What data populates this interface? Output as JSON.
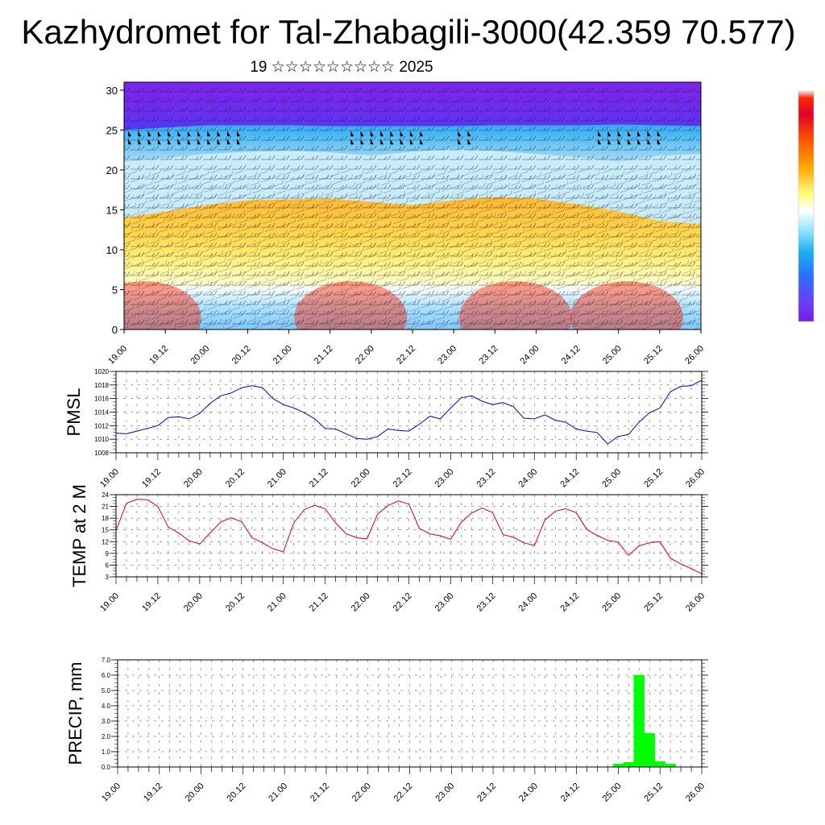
{
  "page": {
    "title": "Kazhydromet for Tal-Zhabagili-3000(42.359 70.577)",
    "subtitle": "19 ☆☆☆☆☆☆☆☆☆ 2025"
  },
  "chart_data": [
    {
      "type": "heatmap",
      "title": "",
      "description_kind": "time-height cross section with wind barbs",
      "x_tick_labels": [
        "19.00",
        "19.12",
        "20.00",
        "20.12",
        "21.00",
        "21.12",
        "22.00",
        "22.12",
        "23.00",
        "23.12",
        "24.00",
        "24.12",
        "25.00",
        "25.12",
        "26.00"
      ],
      "y_ticks": [
        0,
        5,
        10,
        15,
        20,
        25,
        30
      ],
      "ylim": [
        0,
        31
      ],
      "colorbar": {
        "colormap": "rainbow (violet-blue-cyan-white-yellow-orange-red)",
        "tick_labels": []
      },
      "bands": {
        "x": [
          0,
          0.5,
          1,
          1.5,
          2,
          2.5,
          3,
          3.5,
          4,
          4.5,
          5,
          5.5,
          6,
          6.5,
          7
        ],
        "warm_top": [
          14.0,
          14.8,
          15.6,
          16.2,
          16.3,
          16.4,
          16.0,
          15.6,
          16.2,
          16.6,
          16.4,
          15.7,
          14.8,
          13.6,
          13.2
        ],
        "cool_top": [
          21.0,
          21.5,
          22.0,
          22.3,
          22.4,
          22.2,
          21.8,
          22.3,
          22.6,
          22.4,
          22.0,
          21.6,
          21.0,
          21.8,
          22.0
        ],
        "violet_bottom": [
          25.0,
          25.3,
          25.6,
          25.6,
          25.6,
          25.5,
          25.5,
          25.5,
          25.5,
          25.6,
          25.6,
          25.6,
          25.7,
          25.6,
          25.5
        ]
      },
      "grid": false,
      "legend": "colorbar at right"
    },
    {
      "type": "line",
      "ylabel": "PMSL",
      "xlabel": "",
      "x_tick_labels": [
        "19.00",
        "19.12",
        "20.00",
        "20.12",
        "21.00",
        "21.12",
        "22.00",
        "22.12",
        "23.00",
        "23.12",
        "24.00",
        "24.12",
        "25.00",
        "25.12",
        "26.00"
      ],
      "y_tick_labels": [
        "1008",
        "1010",
        "1012",
        "1014",
        "1016",
        "1018",
        "1020"
      ],
      "ylim": [
        1008,
        1020
      ],
      "x": [
        0,
        0.125,
        0.25,
        0.375,
        0.5,
        0.625,
        0.75,
        0.875,
        1,
        1.125,
        1.25,
        1.375,
        1.5,
        1.625,
        1.75,
        1.875,
        2,
        2.125,
        2.25,
        2.375,
        2.5,
        2.625,
        2.75,
        2.875,
        3,
        3.125,
        3.25,
        3.375,
        3.5,
        3.625,
        3.75,
        3.875,
        4,
        4.125,
        4.25,
        4.375,
        4.5,
        4.625,
        4.75,
        4.875,
        5,
        5.125,
        5.25,
        5.375,
        5.5,
        5.625,
        5.75,
        5.875,
        6,
        6.125,
        6.25,
        6.375,
        6.5,
        6.625,
        6.75,
        6.875,
        7
      ],
      "series": [
        {
          "color": "#0000cc",
          "values": [
            1010.9,
            1010.8,
            1011.2,
            1011.6,
            1012.0,
            1013.2,
            1013.3,
            1013.0,
            1013.8,
            1015.3,
            1016.4,
            1016.8,
            1017.6,
            1017.9,
            1017.6,
            1016.0,
            1015.1,
            1014.6,
            1013.9,
            1013.0,
            1011.6,
            1011.5,
            1010.8,
            1010.1,
            1010.0,
            1010.4,
            1011.5,
            1011.3,
            1011.2,
            1012.2,
            1013.4,
            1013.0,
            1014.6,
            1016.1,
            1016.4,
            1015.6,
            1015.1,
            1015.4,
            1014.8,
            1013.1,
            1013.0,
            1013.6,
            1012.8,
            1012.5,
            1011.5,
            1011.2,
            1011.0,
            1009.3,
            1010.4,
            1010.7,
            1012.5,
            1013.9,
            1014.6,
            1017.0,
            1017.8,
            1017.9,
            1018.7
          ]
        }
      ],
      "grid": true,
      "legend": "none"
    },
    {
      "type": "line",
      "ylabel": "TEMP at 2 M",
      "xlabel": "",
      "x_tick_labels": [
        "19.00",
        "19.12",
        "20.00",
        "20.12",
        "21.00",
        "21.12",
        "22.00",
        "22.12",
        "23.00",
        "23.12",
        "24.00",
        "24.12",
        "25.00",
        "25.12",
        "26.00"
      ],
      "y_tick_labels": [
        "3",
        "6",
        "9",
        "12",
        "15",
        "18",
        "21",
        "24"
      ],
      "ylim": [
        3,
        24
      ],
      "x": [
        0,
        0.125,
        0.25,
        0.375,
        0.5,
        0.625,
        0.75,
        0.875,
        1,
        1.125,
        1.25,
        1.375,
        1.5,
        1.625,
        1.75,
        1.875,
        2,
        2.125,
        2.25,
        2.375,
        2.5,
        2.625,
        2.75,
        2.875,
        3,
        3.125,
        3.25,
        3.375,
        3.5,
        3.625,
        3.75,
        3.875,
        4,
        4.125,
        4.25,
        4.375,
        4.5,
        4.625,
        4.75,
        4.875,
        5,
        5.125,
        5.25,
        5.375,
        5.5,
        5.625,
        5.75,
        5.875,
        6,
        6.125,
        6.25,
        6.375,
        6.5,
        6.625,
        6.75,
        6.875,
        7
      ],
      "series": [
        {
          "color": "#dd0000",
          "values": [
            14.9,
            21.8,
            22.8,
            22.7,
            21.0,
            15.7,
            14.2,
            12.2,
            11.4,
            14.2,
            17.0,
            18.1,
            17.1,
            13.0,
            11.7,
            10.2,
            9.4,
            16.8,
            20.2,
            21.3,
            20.4,
            16.8,
            14.0,
            13.0,
            12.7,
            19.0,
            21.2,
            22.4,
            21.6,
            15.4,
            14.0,
            13.5,
            12.6,
            16.9,
            19.3,
            20.6,
            19.4,
            13.8,
            13.1,
            11.7,
            11.0,
            17.5,
            19.8,
            20.4,
            19.4,
            15.1,
            13.6,
            12.3,
            11.9,
            8.5,
            10.9,
            11.7,
            12.0,
            7.8,
            6.3,
            5.1,
            3.8
          ]
        }
      ],
      "grid": true,
      "legend": "none"
    },
    {
      "type": "bar",
      "ylabel": "PRECIP, mm",
      "xlabel": "",
      "x_tick_labels": [
        "19.00",
        "19.12",
        "20.00",
        "20.12",
        "21.00",
        "21.12",
        "22.00",
        "22.12",
        "23.00",
        "23.12",
        "24.00",
        "24.12",
        "25.00",
        "25.12",
        "26.00"
      ],
      "y_tick_labels": [
        "0.0",
        "1.0",
        "2.0",
        "3.0",
        "4.0",
        "5.0",
        "6.0",
        "7.0"
      ],
      "ylim": [
        0,
        7
      ],
      "x": [
        6.0,
        6.125,
        6.25,
        6.375,
        6.5,
        6.625
      ],
      "values": [
        0.2,
        0.3,
        6.0,
        2.2,
        0.35,
        0.2
      ],
      "color": "#00ff00",
      "grid": true,
      "legend": "none"
    }
  ]
}
